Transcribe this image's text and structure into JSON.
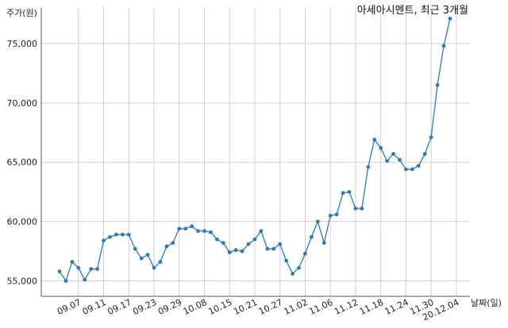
{
  "chart_data": {
    "type": "line",
    "title": "아세아시멘트, 최근 3개월",
    "xlabel": "날짜(일)",
    "ylabel": "주가(원)",
    "ylim": [
      53700,
      78000
    ],
    "y_ticks": [
      55000,
      60000,
      65000,
      70000,
      75000
    ],
    "y_tick_labels": [
      "55,000",
      "60,000",
      "65,000",
      "70,000",
      "75,000"
    ],
    "x_tick_labels": [
      "09.07",
      "09.11",
      "09.17",
      "09.23",
      "09.29",
      "10.08",
      "10.15",
      "10.21",
      "10.27",
      "11.02",
      "11.06",
      "11.12",
      "11.18",
      "11.24",
      "11.30",
      "20.12.04"
    ],
    "x_tick_indices": [
      3,
      7,
      11,
      15,
      19,
      23,
      27,
      31,
      35,
      39,
      43,
      47,
      51,
      55,
      59,
      63
    ],
    "grid": true,
    "line_color": "#2b7bb9",
    "series": [
      {
        "values": [
          55800,
          55000,
          56600,
          56100,
          55100,
          56000,
          56000,
          58400,
          58700,
          58900,
          58900,
          58900,
          57700,
          56900,
          57200,
          56100,
          56600,
          57900,
          58200,
          59400,
          59400,
          59600,
          59200,
          59200,
          59100,
          58500,
          58200,
          57400,
          57600,
          57500,
          58100,
          58500,
          59200,
          57700,
          57700,
          58100,
          56700,
          55600,
          56100,
          57300,
          58700,
          60000,
          58200,
          60500,
          60600,
          62400,
          62500,
          61100,
          61100,
          64600,
          66900,
          66200,
          65100,
          65700,
          65200,
          64400,
          64400,
          64700,
          65700,
          67100,
          71500,
          74800,
          77100
        ]
      }
    ]
  }
}
